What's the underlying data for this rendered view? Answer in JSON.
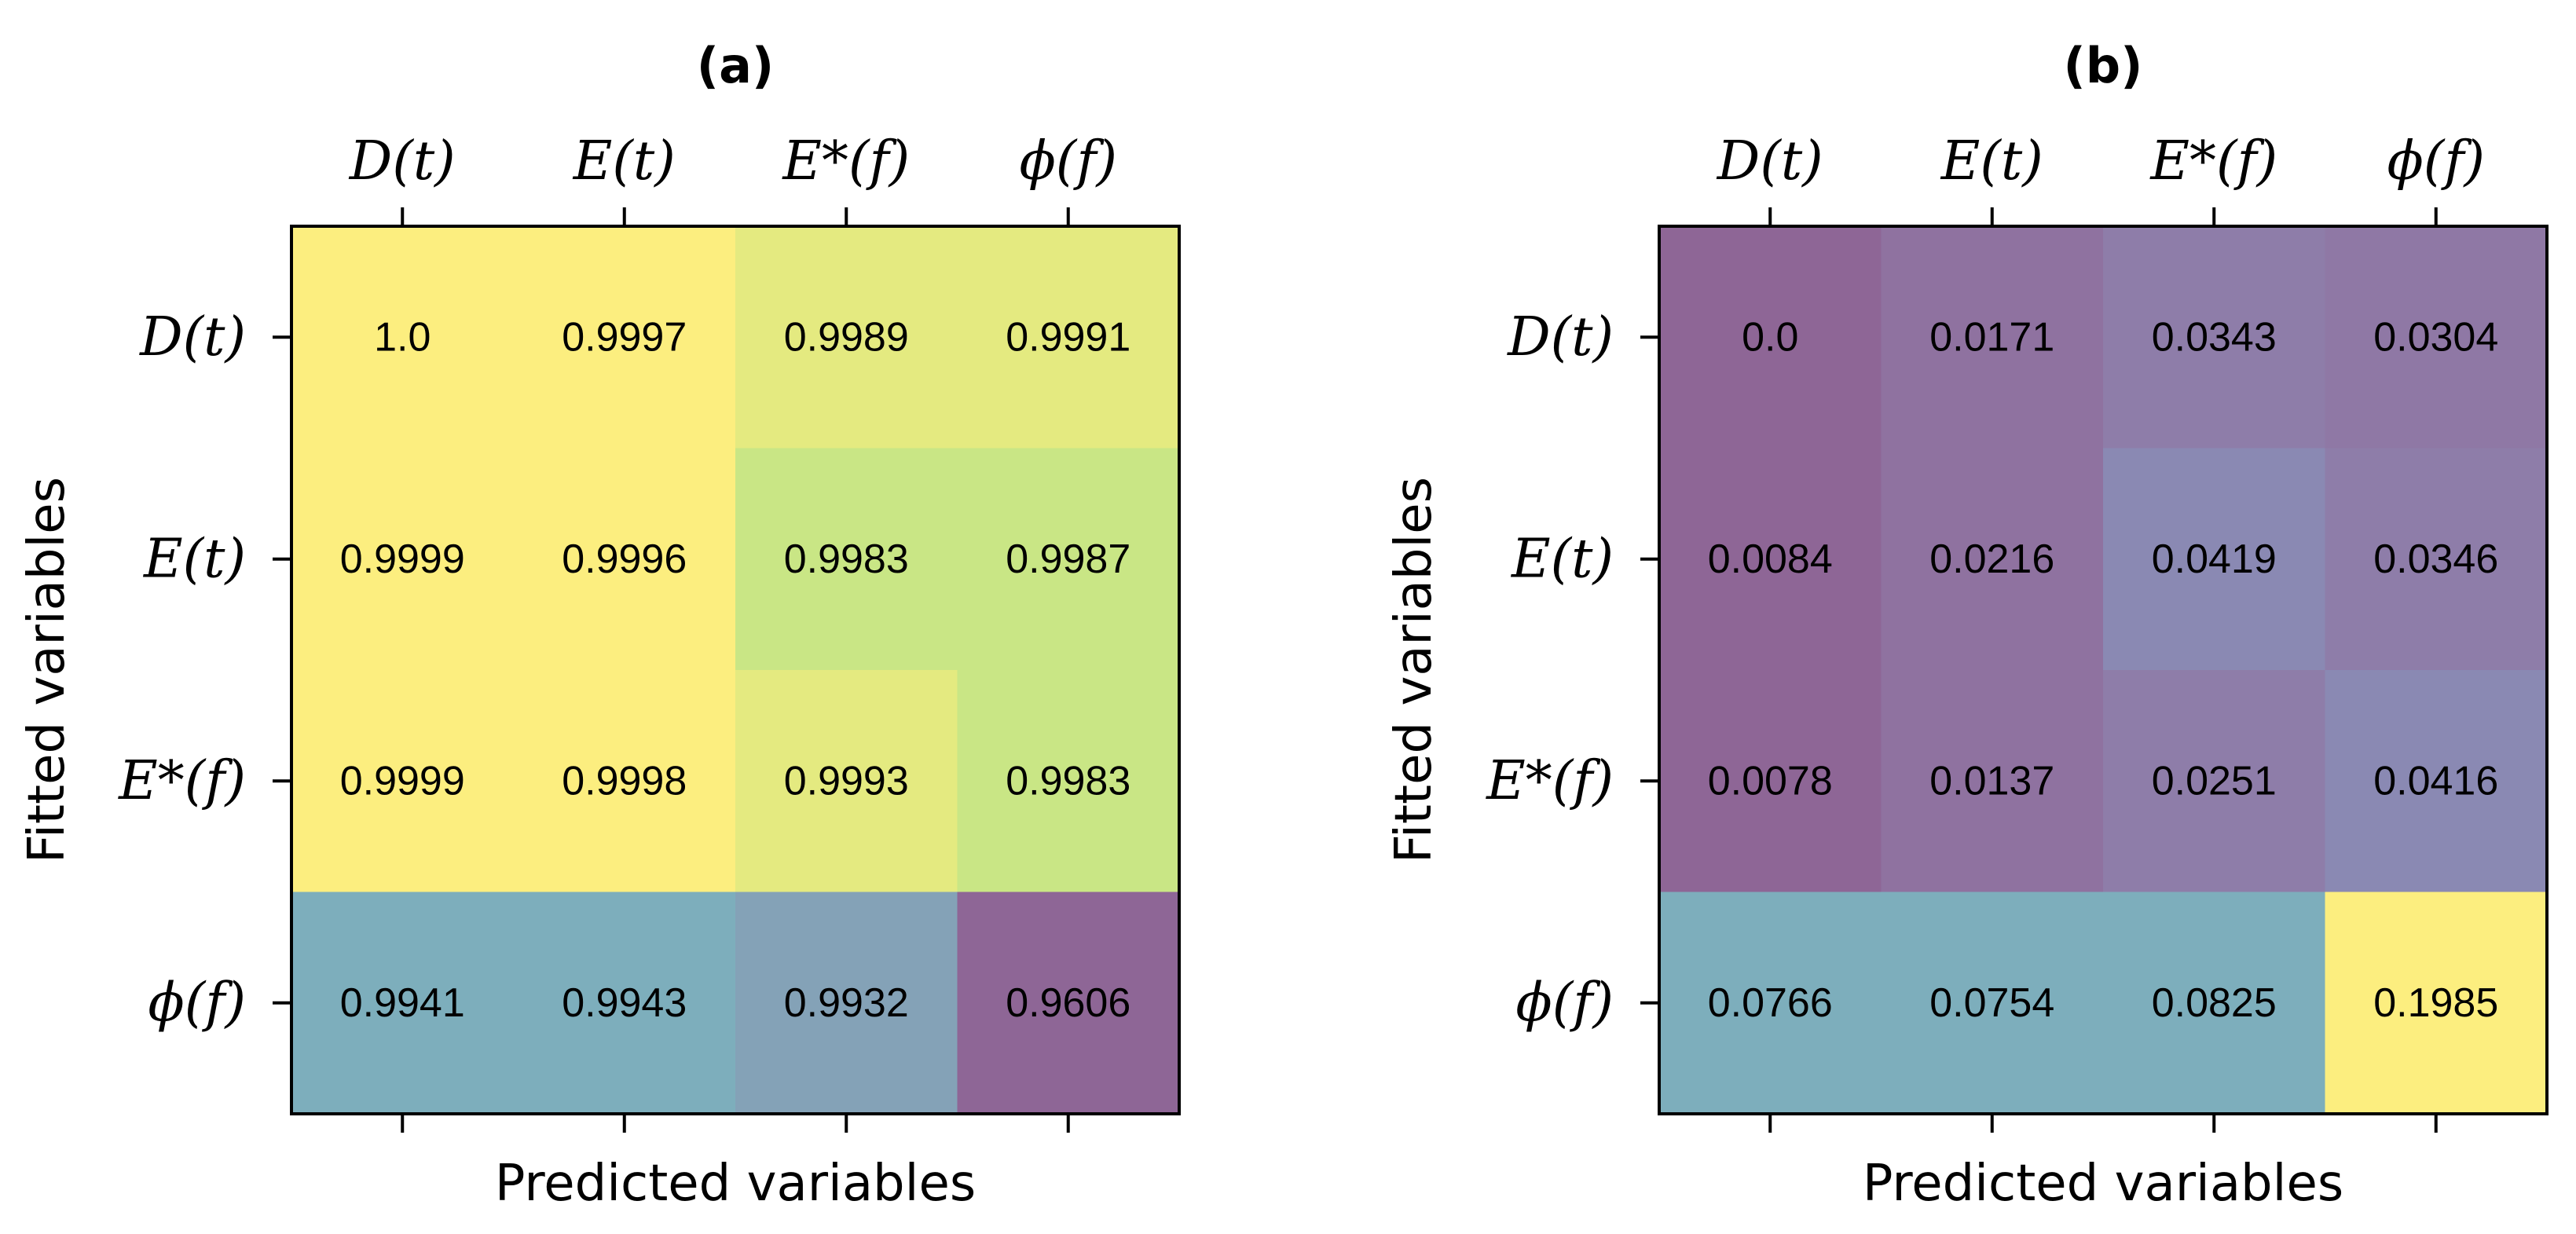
{
  "chart_data": [
    {
      "type": "heatmap",
      "title": "(a)",
      "xlabel": "Predicted variables",
      "ylabel": "Fitted variables",
      "x_categories": [
        "D(t)",
        "E(t)",
        "E*(f)",
        "ϕ(f)"
      ],
      "y_categories": [
        "D(t)",
        "E(t)",
        "E*(f)",
        "ϕ(f)"
      ],
      "values": [
        [
          1.0,
          0.9997,
          0.9989,
          0.9991
        ],
        [
          0.9999,
          0.9996,
          0.9983,
          0.9987
        ],
        [
          0.9999,
          0.9998,
          0.9993,
          0.9983
        ],
        [
          0.9941,
          0.9943,
          0.9932,
          0.9606
        ]
      ],
      "cell_labels": [
        [
          "1.0",
          "0.9997",
          "0.9989",
          "0.9991"
        ],
        [
          "0.9999",
          "0.9996",
          "0.9983",
          "0.9987"
        ],
        [
          "0.9999",
          "0.9998",
          "0.9993",
          "0.9983"
        ],
        [
          "0.9941",
          "0.9943",
          "0.9932",
          "0.9606"
        ]
      ],
      "colormap": "viridis",
      "x_tick_position": "top"
    },
    {
      "type": "heatmap",
      "title": "(b)",
      "xlabel": "Predicted variables",
      "ylabel": "Fitted variables",
      "x_categories": [
        "D(t)",
        "E(t)",
        "E*(f)",
        "ϕ(f)"
      ],
      "y_categories": [
        "D(t)",
        "E(t)",
        "E*(f)",
        "ϕ(f)"
      ],
      "values": [
        [
          0.0,
          0.0171,
          0.0343,
          0.0304
        ],
        [
          0.0084,
          0.0216,
          0.0419,
          0.0346
        ],
        [
          0.0078,
          0.0137,
          0.0251,
          0.0416
        ],
        [
          0.0766,
          0.0754,
          0.0825,
          0.1985
        ]
      ],
      "cell_labels": [
        [
          "0.0",
          "0.0171",
          "0.0343",
          "0.0304"
        ],
        [
          "0.0084",
          "0.0216",
          "0.0419",
          "0.0346"
        ],
        [
          "0.0078",
          "0.0137",
          "0.0251",
          "0.0416"
        ],
        [
          "0.0766",
          "0.0754",
          "0.0825",
          "0.1985"
        ]
      ],
      "colormap": "viridis",
      "x_tick_position": "top"
    }
  ],
  "cell_colors": [
    [
      [
        "#fcee7f",
        "#fcee7f",
        "#e4ea80",
        "#e4ea80"
      ],
      [
        "#fcee7f",
        "#fcee7f",
        "#c9e685",
        "#c9e685"
      ],
      [
        "#fcee7f",
        "#fcee7f",
        "#e4ea80",
        "#c9e685"
      ],
      [
        "#7daebc",
        "#7daebc",
        "#84a2b7",
        "#8e6696"
      ]
    ],
    [
      [
        "#8e6696",
        "#8f72a0",
        "#8e7da9",
        "#8f78a5"
      ],
      [
        "#8e6696",
        "#8f72a0",
        "#8a89b3",
        "#8e7da9"
      ],
      [
        "#8e6696",
        "#8f72a0",
        "#8e7da9",
        "#8a89b3"
      ],
      [
        "#7daebc",
        "#7daebc",
        "#7daebc",
        "#fcee7f"
      ]
    ]
  ]
}
